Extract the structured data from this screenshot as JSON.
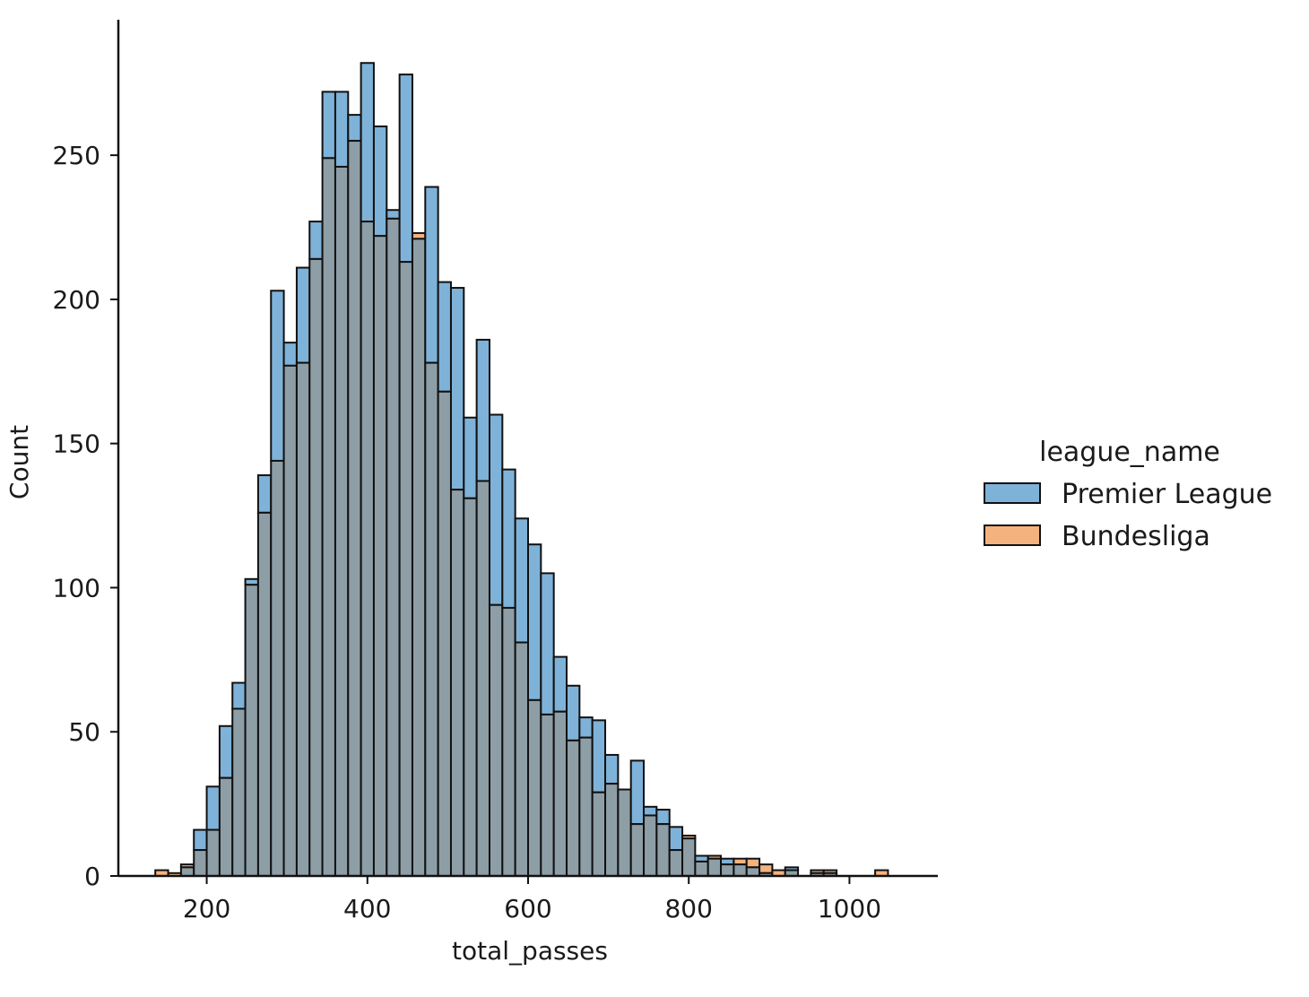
{
  "chart_data": {
    "type": "bar",
    "title": "",
    "xlabel": "total_passes",
    "ylabel": "Count",
    "xlim": [
      90,
      1110
    ],
    "ylim": [
      0,
      297
    ],
    "xticks": [
      200,
      400,
      600,
      800,
      1000
    ],
    "yticks": [
      0,
      50,
      100,
      150,
      200,
      250
    ],
    "grid": false,
    "bin_width": 16,
    "legend": {
      "title": "league_name",
      "placement": "right"
    },
    "bin_starts": [
      136,
      152,
      168,
      184,
      200,
      216,
      232,
      248,
      264,
      280,
      296,
      312,
      328,
      344,
      360,
      376,
      392,
      408,
      424,
      440,
      456,
      472,
      488,
      504,
      520,
      536,
      552,
      568,
      584,
      600,
      616,
      632,
      648,
      664,
      680,
      696,
      712,
      728,
      744,
      760,
      776,
      792,
      808,
      824,
      840,
      856,
      872,
      888,
      904,
      920,
      936,
      952,
      968,
      984,
      1000,
      1016,
      1032,
      1048
    ],
    "series": [
      {
        "name": "Premier League",
        "color": "#7fb2d8",
        "values": [
          0,
          0,
          3,
          16,
          31,
          52,
          67,
          103,
          139,
          203,
          185,
          211,
          227,
          272,
          272,
          264,
          282,
          260,
          231,
          278,
          221,
          239,
          206,
          204,
          159,
          186,
          160,
          141,
          124,
          115,
          105,
          76,
          66,
          55,
          54,
          42,
          30,
          40,
          24,
          23,
          17,
          13,
          7,
          6,
          6,
          4,
          3,
          1,
          0,
          3,
          0,
          1,
          1,
          0,
          0,
          0,
          0,
          0
        ]
      },
      {
        "name": "Bundesliga",
        "color": "#f4b27e",
        "values": [
          2,
          1,
          4,
          9,
          16,
          34,
          58,
          101,
          126,
          144,
          177,
          178,
          214,
          249,
          246,
          255,
          227,
          222,
          228,
          213,
          223,
          178,
          168,
          134,
          131,
          137,
          94,
          93,
          81,
          61,
          56,
          57,
          47,
          48,
          29,
          32,
          30,
          18,
          21,
          18,
          9,
          14,
          5,
          7,
          4,
          6,
          6,
          4,
          2,
          2,
          0,
          2,
          2,
          0,
          0,
          0,
          2,
          0
        ]
      }
    ],
    "overlap_color": "#8e9ea6",
    "edge_color": "#111111"
  }
}
